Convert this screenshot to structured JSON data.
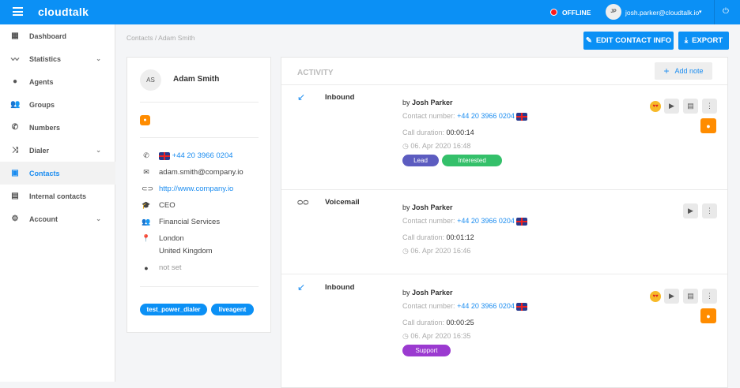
{
  "header": {
    "app_name": "cloudtalk",
    "status": "OFFLINE",
    "status_color": "#ff1a1a",
    "user_initials": "JP",
    "user_email": "josh.parker@cloudtalk.io"
  },
  "sidebar": {
    "items": [
      {
        "label": "Dashboard",
        "icon": "dashboard-icon",
        "glyph": "▦"
      },
      {
        "label": "Statistics",
        "icon": "trending-icon",
        "glyph": "〰",
        "chevron": true
      },
      {
        "label": "Agents",
        "icon": "person-icon",
        "glyph": "●"
      },
      {
        "label": "Groups",
        "icon": "group-icon",
        "glyph": "👥"
      },
      {
        "label": "Numbers",
        "icon": "phone-icon",
        "glyph": "✆"
      },
      {
        "label": "Dialer",
        "icon": "shuffle-icon",
        "glyph": "⤨",
        "chevron": true
      },
      {
        "label": "Contacts",
        "icon": "contacts-icon",
        "glyph": "▣",
        "active": true
      },
      {
        "label": "Internal contacts",
        "icon": "contact-card-icon",
        "glyph": "▤"
      },
      {
        "label": "Account",
        "icon": "gear-icon",
        "glyph": "⚙",
        "chevron": true
      }
    ]
  },
  "breadcrumb": "Contacts / Adam Smith",
  "toolbar": {
    "edit": "EDIT CONTACT INFO",
    "export": "EXPORT"
  },
  "contact": {
    "initials": "AS",
    "name": "Adam Smith",
    "phone": "+44 20 3966 0204",
    "email": "adam.smith@company.io",
    "website": "http://www.company.io",
    "title": "CEO",
    "industry": "Financial Services",
    "city": "London",
    "country": "United Kingdom",
    "owner": "not set",
    "tags": [
      "test_power_dialer",
      "liveagent"
    ]
  },
  "activity": {
    "title": "ACTIVITY",
    "add_note": "Add note",
    "entries": [
      {
        "type": "Inbound",
        "by": "by",
        "agent": "Josh Parker",
        "number_label": "Contact number:",
        "number": "+44 20 3966 0204",
        "duration_label": "Call duration:",
        "duration": "00:00:14",
        "date": "06. Apr 2020 16:48",
        "tags": [
          {
            "label": "Lead",
            "color": "#5c5cc0"
          },
          {
            "label": "Interested",
            "color": "#34c06a"
          }
        ]
      },
      {
        "type": "Voicemail",
        "by": "by",
        "agent": "Josh Parker",
        "number_label": "Contact number:",
        "number": "+44 20 3966 0204",
        "duration_label": "Call duration:",
        "duration": "00:01:12",
        "date": "06. Apr 2020 16:46"
      },
      {
        "type": "Inbound",
        "by": "by",
        "agent": "Josh Parker",
        "number_label": "Contact number:",
        "number": "+44 20 3966 0204",
        "duration_label": "Call duration:",
        "duration": "00:00:25",
        "date": "06. Apr 2020 16:35",
        "tags": [
          {
            "label": "Support",
            "color": "#9b3ad0"
          }
        ]
      }
    ]
  }
}
